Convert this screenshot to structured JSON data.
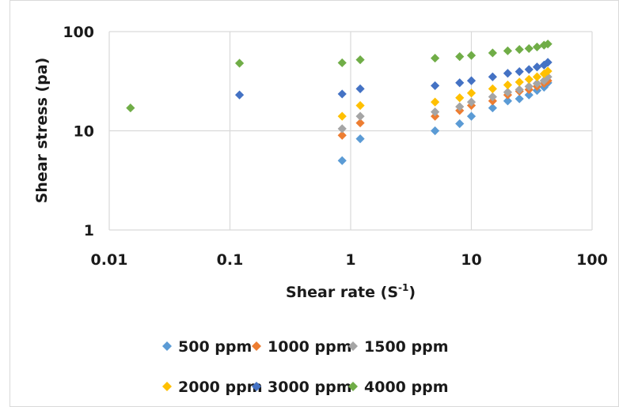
{
  "chart_data": {
    "type": "scatter",
    "xscale": "log",
    "yscale": "log",
    "xlim": [
      0.01,
      100
    ],
    "ylim": [
      1,
      100
    ],
    "grid": true,
    "xlabel": "Shear rate (S",
    "xlabel_sup": "-1",
    "xlabel_end": ")",
    "ylabel": "Shear stress (pa)",
    "x_ticks": [
      "0.01",
      "0.1",
      "1",
      "10",
      "100"
    ],
    "y_ticks": [
      "1",
      "10",
      "100"
    ],
    "legend_position": "bottom",
    "series": [
      {
        "name": "500 ppm",
        "color": "#5b9bd5",
        "points": [
          [
            0.85,
            5.0
          ],
          [
            1.2,
            8.3
          ],
          [
            5,
            10.0
          ],
          [
            8,
            11.8
          ],
          [
            10,
            14.0
          ],
          [
            15,
            17.0
          ],
          [
            20,
            20.0
          ],
          [
            25,
            21.0
          ],
          [
            30,
            23.0
          ],
          [
            35,
            25.5
          ],
          [
            40,
            27.5
          ],
          [
            43,
            30.5
          ]
        ]
      },
      {
        "name": "1000 ppm",
        "color": "#ed7d31",
        "points": [
          [
            0.85,
            9.0
          ],
          [
            1.2,
            12.0
          ],
          [
            5,
            14.0
          ],
          [
            8,
            16.0
          ],
          [
            10,
            18.0
          ],
          [
            15,
            20.0
          ],
          [
            20,
            23.0
          ],
          [
            25,
            25.0
          ],
          [
            30,
            26.0
          ],
          [
            35,
            28.0
          ],
          [
            40,
            30.0
          ],
          [
            43,
            32.0
          ]
        ]
      },
      {
        "name": "1500 ppm",
        "color": "#a5a5a5",
        "points": [
          [
            0.85,
            10.5
          ],
          [
            1.2,
            14.0
          ],
          [
            5,
            15.5
          ],
          [
            8,
            17.5
          ],
          [
            10,
            19.5
          ],
          [
            15,
            22.0
          ],
          [
            20,
            24.5
          ],
          [
            25,
            26.0
          ],
          [
            30,
            28.0
          ],
          [
            35,
            30.0
          ],
          [
            40,
            32.0
          ],
          [
            43,
            35.0
          ]
        ]
      },
      {
        "name": "2000 ppm",
        "color": "#ffc000",
        "points": [
          [
            0.85,
            14.0
          ],
          [
            1.2,
            18.0
          ],
          [
            5,
            19.5
          ],
          [
            8,
            21.5
          ],
          [
            10,
            24.0
          ],
          [
            15,
            26.5
          ],
          [
            20,
            29.0
          ],
          [
            25,
            31.0
          ],
          [
            30,
            33.0
          ],
          [
            35,
            35.0
          ],
          [
            40,
            37.5
          ],
          [
            43,
            40.0
          ]
        ]
      },
      {
        "name": "3000 ppm",
        "color": "#4472c4",
        "points": [
          [
            0.12,
            23.0
          ],
          [
            0.85,
            23.5
          ],
          [
            1.2,
            26.5
          ],
          [
            5,
            28.5
          ],
          [
            8,
            30.5
          ],
          [
            10,
            32.0
          ],
          [
            15,
            35.0
          ],
          [
            20,
            38.0
          ],
          [
            25,
            39.5
          ],
          [
            30,
            41.5
          ],
          [
            35,
            44.0
          ],
          [
            40,
            46.0
          ],
          [
            43,
            49.0
          ]
        ]
      },
      {
        "name": "4000 ppm",
        "color": "#70ad47",
        "points": [
          [
            0.015,
            17.0
          ],
          [
            0.12,
            48.0
          ],
          [
            0.85,
            48.5
          ],
          [
            1.2,
            52.0
          ],
          [
            5,
            54.0
          ],
          [
            8,
            56.0
          ],
          [
            10,
            57.5
          ],
          [
            15,
            61.0
          ],
          [
            20,
            64.0
          ],
          [
            25,
            66.0
          ],
          [
            30,
            67.5
          ],
          [
            35,
            70.0
          ],
          [
            40,
            73.0
          ],
          [
            43,
            75.0
          ]
        ]
      }
    ]
  }
}
